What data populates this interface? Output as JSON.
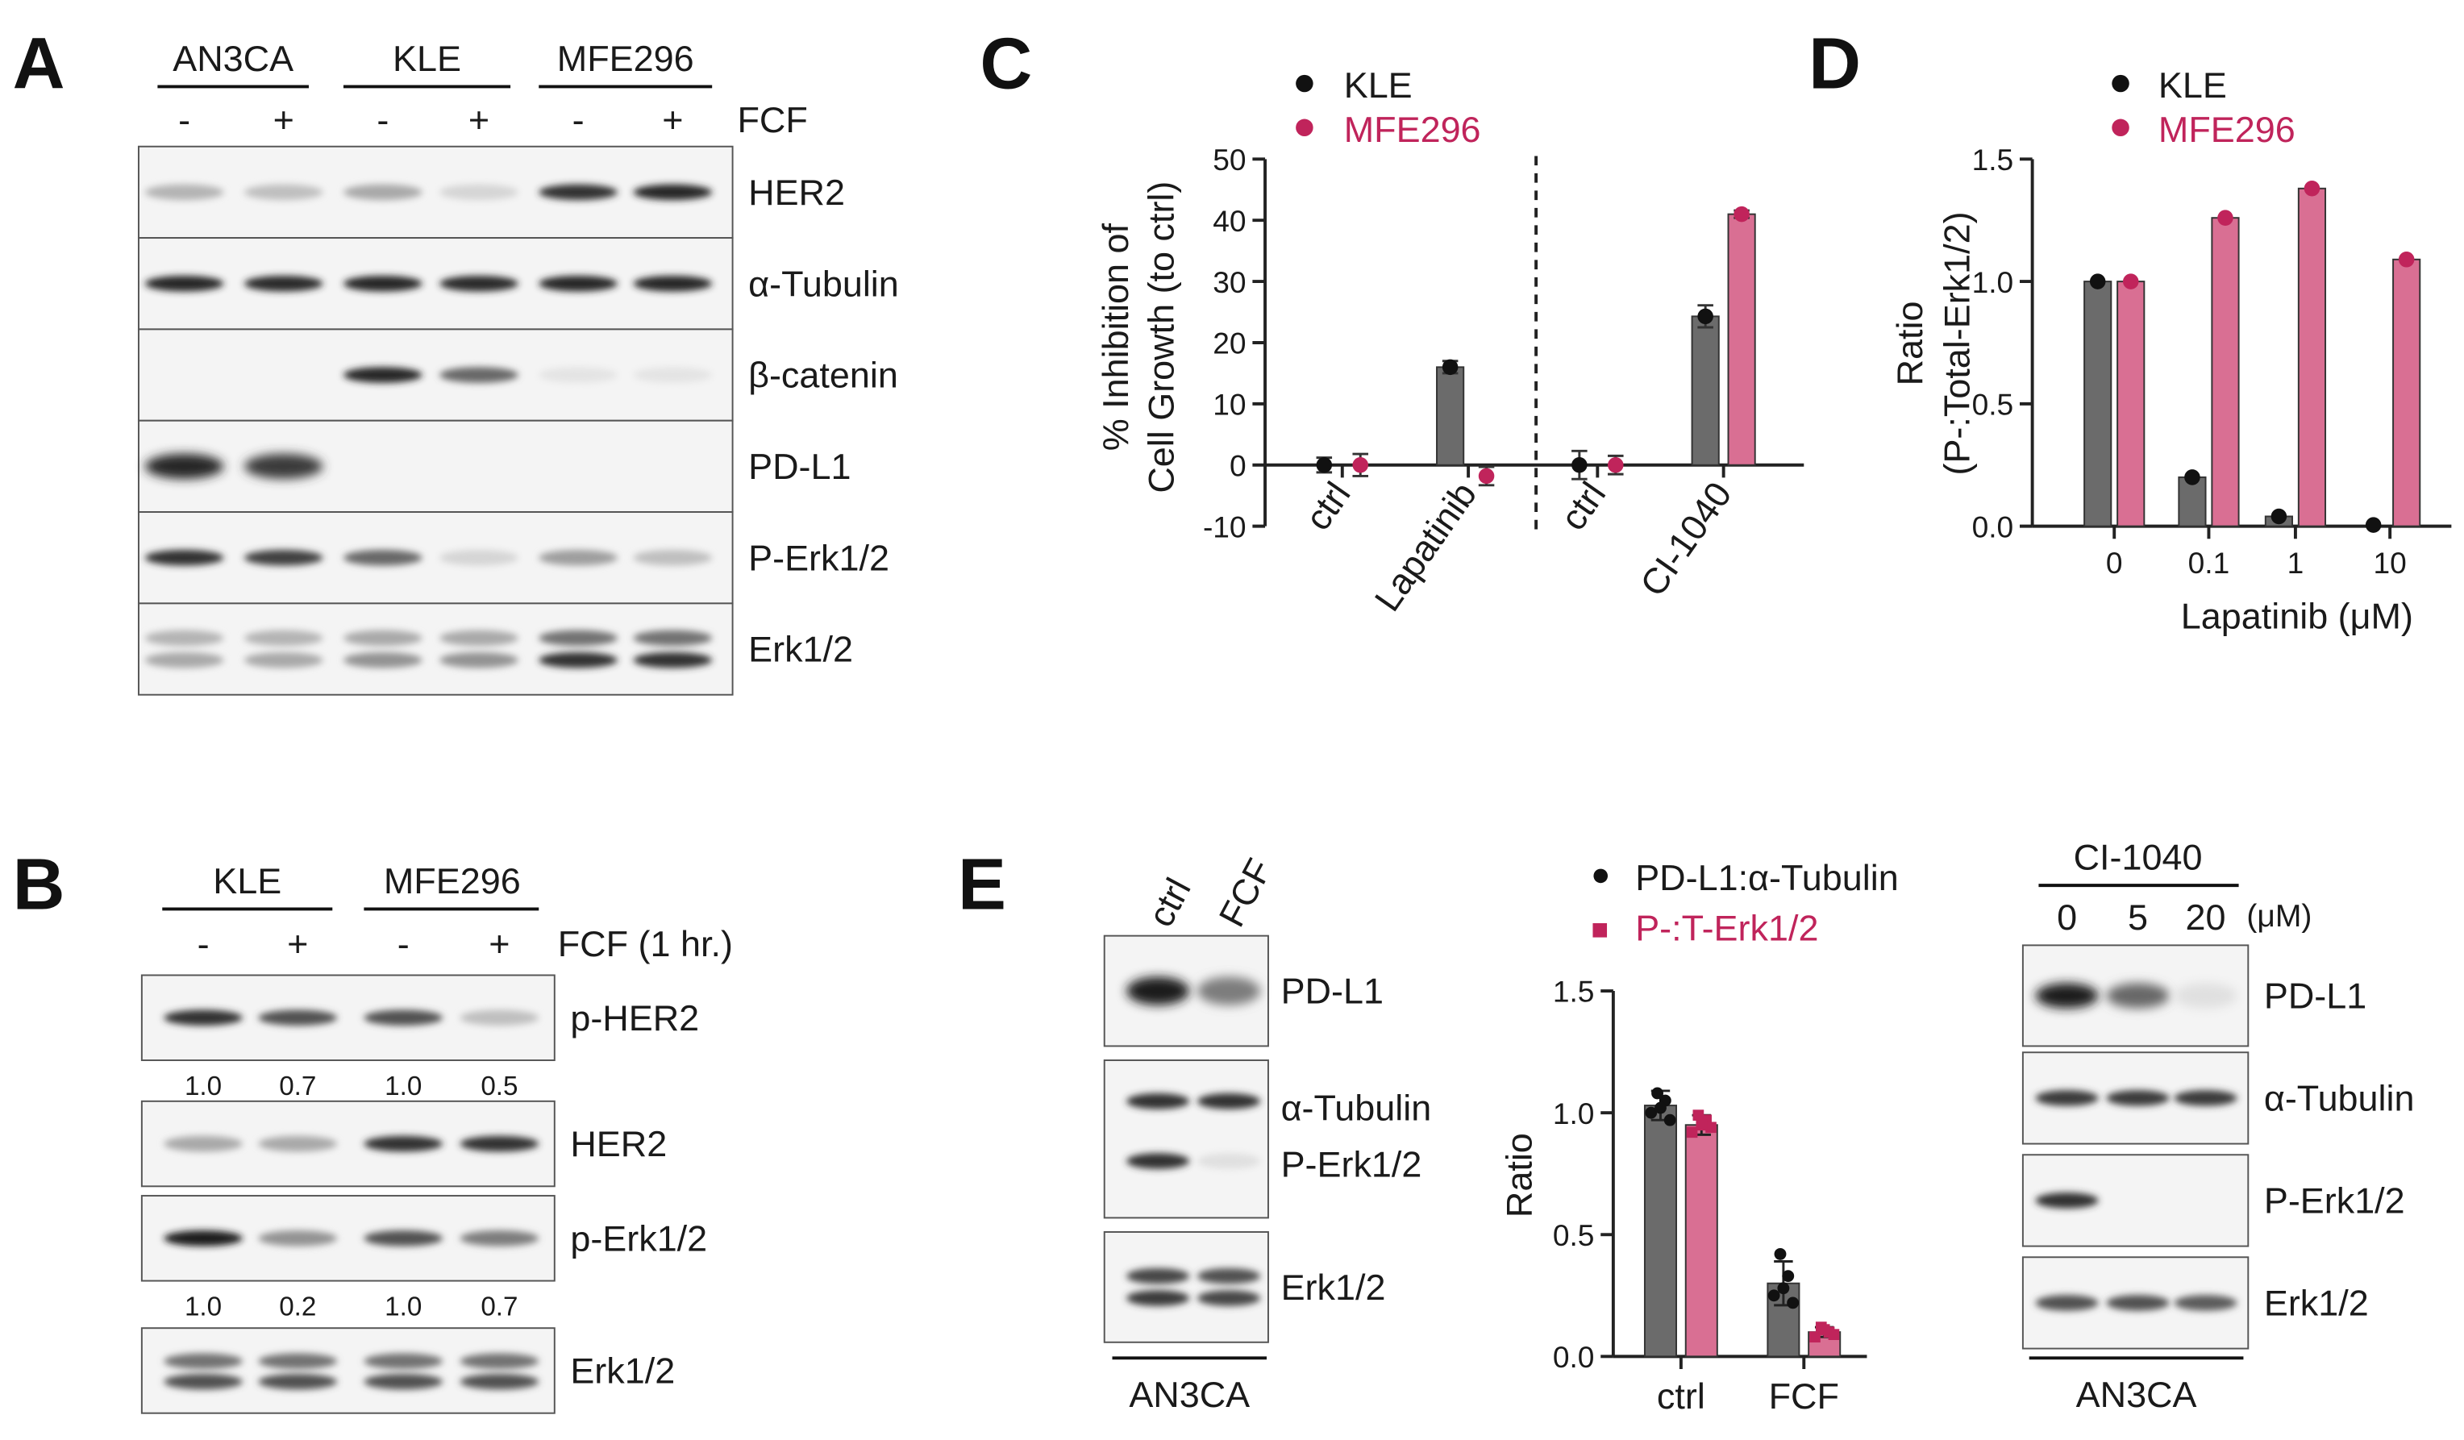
{
  "panels": {
    "A": {
      "letter": "A",
      "cell_lines": [
        "AN3CA",
        "KLE",
        "MFE296"
      ],
      "treatment_signs": [
        "-",
        "+",
        "-",
        "+",
        "-",
        "+"
      ],
      "treatment_label": "FCF",
      "blots": [
        "HER2",
        "α-Tubulin",
        "β-catenin",
        "PD-L1",
        "P-Erk1/2",
        "Erk1/2"
      ]
    },
    "B": {
      "letter": "B",
      "cell_lines": [
        "KLE",
        "MFE296"
      ],
      "treatment_signs": [
        "-",
        "+",
        "-",
        "+"
      ],
      "treatment_label": "FCF (1 hr.)",
      "blots": [
        "p-HER2",
        "HER2",
        "p-Erk1/2",
        "Erk1/2"
      ],
      "quant_pher2": [
        "1.0",
        "0.7",
        "1.0",
        "0.5"
      ],
      "quant_perk": [
        "1.0",
        "0.2",
        "1.0",
        "0.7"
      ]
    },
    "E": {
      "letter": "E",
      "lanes": [
        "ctrl",
        "FCF"
      ],
      "blots": [
        "PD-L1",
        "α-Tubulin",
        "P-Erk1/2",
        "Erk1/2"
      ],
      "cell_line": "AN3CA",
      "right": {
        "drug": "CI-1040",
        "doses": [
          "0",
          "5",
          "20"
        ],
        "unit": "(μM)",
        "blots": [
          "PD-L1",
          "α-Tubulin",
          "P-Erk1/2",
          "Erk1/2"
        ],
        "cell_line": "AN3CA"
      }
    },
    "C_letter": "C",
    "D_letter": "D"
  },
  "chart_data": [
    {
      "id": "C",
      "type": "bar",
      "ylabel_lines": [
        "% Inhibition of",
        "Cell Growth (to ctrl)"
      ],
      "ylim": [
        -10,
        50
      ],
      "yticks": [
        -10,
        0,
        10,
        20,
        30,
        40,
        50
      ],
      "categories": [
        "ctrl",
        "Lapatinib",
        "ctrl",
        "CI-1040"
      ],
      "series": [
        {
          "name": "KLE",
          "color": "#6b6b6b",
          "dot": "#111111",
          "values": [
            0,
            16,
            0,
            24.3
          ],
          "errors": [
            1.2,
            1.0,
            2.3,
            1.8
          ]
        },
        {
          "name": "MFE296",
          "color": "#d96f93",
          "dot": "#c0245b",
          "values": [
            0,
            -1.8,
            0,
            41
          ],
          "errors": [
            1.8,
            1.5,
            1.5,
            0.6
          ]
        }
      ],
      "divider": "dashed",
      "legend_position": "top-left"
    },
    {
      "id": "D",
      "type": "bar",
      "ylabel_lines": [
        "Ratio",
        "(P-:Total-Erk1/2)"
      ],
      "xlabel": "Lapatinib (μM)",
      "ylim": [
        0,
        1.5
      ],
      "yticks": [
        "0.0",
        "0.5",
        "1.0",
        "1.5"
      ],
      "categories": [
        "0",
        "0.1",
        "1",
        "10"
      ],
      "series": [
        {
          "name": "KLE",
          "color": "#6b6b6b",
          "dot": "#111111",
          "values": [
            1.0,
            0.2,
            0.04,
            0.005
          ]
        },
        {
          "name": "MFE296",
          "color": "#d96f93",
          "dot": "#c0245b",
          "values": [
            1.0,
            1.26,
            1.38,
            1.09
          ]
        }
      ],
      "legend_position": "top-left"
    },
    {
      "id": "E-quant",
      "type": "bar",
      "ylabel": "Ratio",
      "ylim": [
        0,
        1.5
      ],
      "yticks": [
        "0.0",
        "0.5",
        "1.0",
        "1.5"
      ],
      "categories": [
        "ctrl",
        "FCF"
      ],
      "series": [
        {
          "name": "PD-L1:α-Tubulin",
          "color": "#6b6b6b",
          "dot": "#111111",
          "values": [
            1.03,
            0.3
          ],
          "errors": [
            0.06,
            0.09
          ],
          "points": [
            [
              1.0,
              1.05,
              1.08,
              0.97,
              1.02
            ],
            [
              0.25,
              0.33,
              0.42,
              0.22,
              0.28
            ]
          ]
        },
        {
          "name": "P-:T-Erk1/2",
          "color": "#d96f93",
          "dot": "#c0245b",
          "values": [
            0.95,
            0.1
          ],
          "errors": [
            0.04,
            0.02
          ],
          "points": [
            [
              0.92,
              0.97,
              0.99,
              0.94,
              0.95
            ],
            [
              0.08,
              0.1,
              0.12,
              0.09,
              0.11
            ]
          ]
        }
      ],
      "legend_position": "top"
    }
  ]
}
